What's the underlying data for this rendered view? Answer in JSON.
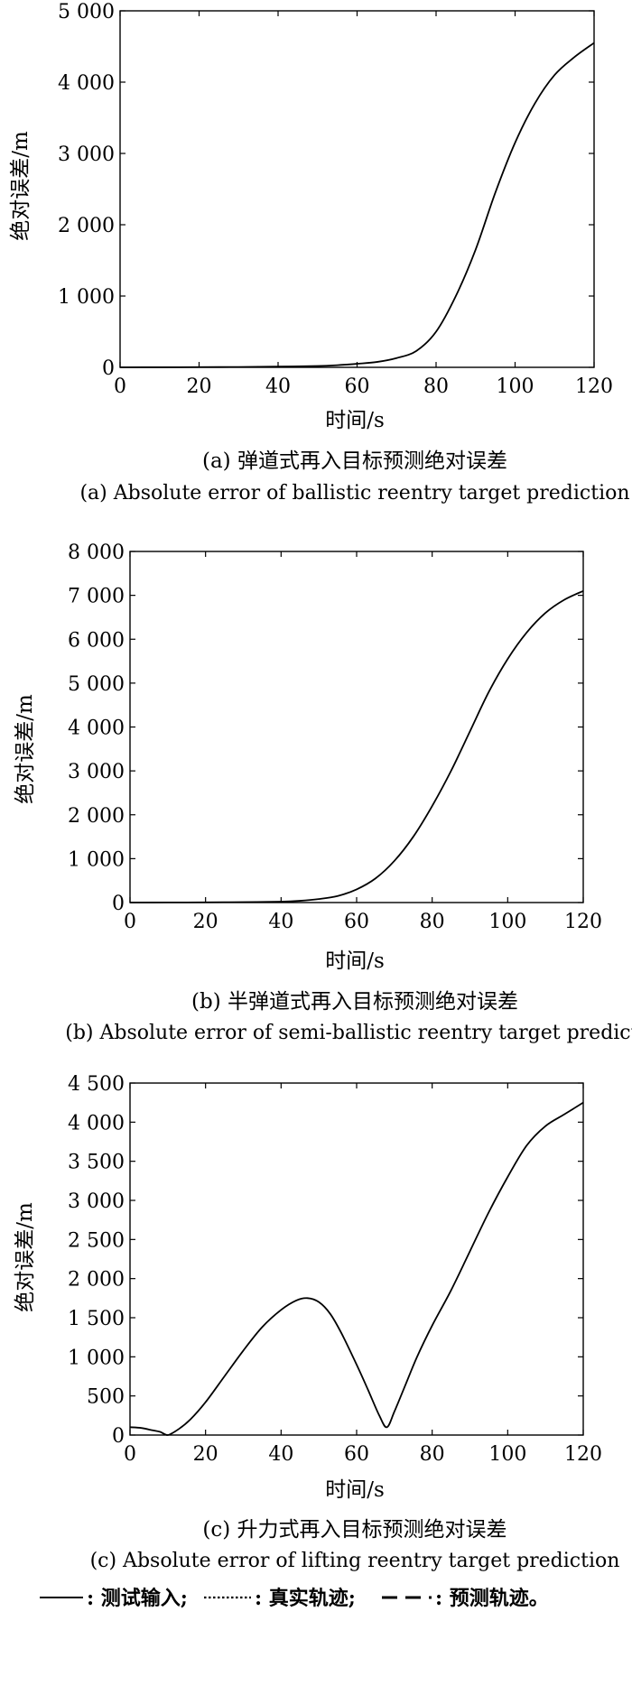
{
  "chart_data": [
    {
      "id": "a",
      "type": "line",
      "xlabel": "时间/s",
      "ylabel": "绝对误差/m",
      "xlim": [
        0,
        120
      ],
      "ylim": [
        0,
        5000
      ],
      "xticks": [
        0,
        20,
        40,
        60,
        80,
        100,
        120
      ],
      "xtick_labels": [
        "0",
        "20",
        "40",
        "60",
        "80",
        "100",
        "120"
      ],
      "yticks": [
        0,
        1000,
        2000,
        3000,
        4000,
        5000
      ],
      "ytick_labels": [
        "0",
        "1 000",
        "2 000",
        "3 000",
        "4 000",
        "5 000"
      ],
      "caption_cn": "(a) 弹道式再入目标预测绝对误差",
      "caption_en": "(a) Absolute error of ballistic reentry target prediction",
      "series": [
        {
          "x": [
            0,
            10,
            20,
            30,
            40,
            50,
            55,
            60,
            65,
            70,
            75,
            80,
            85,
            90,
            95,
            100,
            105,
            110,
            115,
            120
          ],
          "values": [
            0,
            1,
            3,
            5,
            10,
            18,
            30,
            50,
            75,
            130,
            230,
            500,
            1000,
            1650,
            2450,
            3150,
            3700,
            4100,
            4350,
            4550
          ]
        }
      ]
    },
    {
      "id": "b",
      "type": "line",
      "xlabel": "时间/s",
      "ylabel": "绝对误差/m",
      "xlim": [
        0,
        120
      ],
      "ylim": [
        0,
        8000
      ],
      "xticks": [
        0,
        20,
        40,
        60,
        80,
        100,
        120
      ],
      "xtick_labels": [
        "0",
        "20",
        "40",
        "60",
        "80",
        "100",
        "120"
      ],
      "yticks": [
        0,
        1000,
        2000,
        3000,
        4000,
        5000,
        6000,
        7000,
        8000
      ],
      "ytick_labels": [
        "0",
        "1 000",
        "2 000",
        "3 000",
        "4 000",
        "5 000",
        "6 000",
        "7 000",
        "8 000"
      ],
      "caption_cn": "(b) 半弹道式再入目标预测绝对误差",
      "caption_en": "(b) Absolute error of semi-ballistic reentry target predictio",
      "series": [
        {
          "x": [
            0,
            10,
            20,
            30,
            40,
            45,
            50,
            55,
            60,
            65,
            70,
            75,
            80,
            85,
            90,
            95,
            100,
            105,
            110,
            115,
            120
          ],
          "values": [
            0,
            2,
            5,
            10,
            20,
            40,
            80,
            150,
            300,
            550,
            950,
            1500,
            2200,
            3000,
            3900,
            4800,
            5550,
            6150,
            6600,
            6900,
            7100
          ]
        }
      ]
    },
    {
      "id": "c",
      "type": "line",
      "xlabel": "时间/s",
      "ylabel": "绝对误差/m",
      "xlim": [
        0,
        120
      ],
      "ylim": [
        0,
        4500
      ],
      "xticks": [
        0,
        20,
        40,
        60,
        80,
        100,
        120
      ],
      "xtick_labels": [
        "0",
        "20",
        "40",
        "60",
        "80",
        "100",
        "120"
      ],
      "yticks": [
        0,
        500,
        1000,
        1500,
        2000,
        2500,
        3000,
        3500,
        4000,
        4500
      ],
      "ytick_labels": [
        "0",
        "500",
        "1 000",
        "1 500",
        "2 000",
        "2 500",
        "3 000",
        "3 500",
        "4 000",
        "4 500"
      ],
      "caption_cn": "(c) 升力式再入目标预测绝对误差",
      "caption_en": "(c) Absolute error of lifting reentry target prediction",
      "series": [
        {
          "x": [
            0,
            3,
            6,
            8,
            10,
            13,
            16,
            20,
            25,
            30,
            35,
            40,
            44,
            47,
            50,
            53,
            56,
            60,
            63,
            66,
            68,
            70,
            73,
            76,
            80,
            85,
            90,
            95,
            100,
            105,
            110,
            115,
            120
          ],
          "values": [
            100,
            90,
            60,
            40,
            0,
            80,
            200,
            420,
            750,
            1080,
            1380,
            1600,
            1720,
            1750,
            1700,
            1550,
            1300,
            900,
            580,
            250,
            100,
            300,
            650,
            1000,
            1400,
            1850,
            2350,
            2850,
            3300,
            3700,
            3950,
            4100,
            4250
          ]
        }
      ]
    }
  ],
  "legend": {
    "items": [
      {
        "label": ": 测试输入;",
        "style": "solid"
      },
      {
        "label": ": 真实轨迹;",
        "style": "dotted"
      },
      {
        "label": ": 预测轨迹。",
        "style": "dashed"
      }
    ]
  }
}
